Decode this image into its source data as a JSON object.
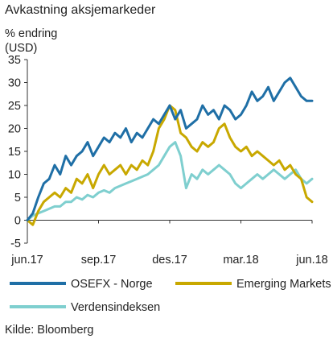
{
  "title": "Avkastning aksjemarkeder",
  "ylabel_line1": "% endring",
  "ylabel_line2": "(USD)",
  "source": "Kilde: Bloomberg",
  "chart_data": {
    "type": "line",
    "ylim": [
      -5,
      35
    ],
    "y_ticks": [
      -5,
      0,
      5,
      10,
      15,
      20,
      25,
      30,
      35
    ],
    "x_ticks": [
      {
        "label": "jun.17",
        "x": 0
      },
      {
        "label": "sep.17",
        "x": 13
      },
      {
        "label": "des.17",
        "x": 26
      },
      {
        "label": "mar.18",
        "x": 39
      },
      {
        "label": "jun.18",
        "x": 52
      }
    ],
    "xlim": [
      0,
      52
    ],
    "grid": false,
    "legend": "bottom",
    "series": [
      {
        "name": "OSEFX - Norge",
        "color": "#1f6fa6",
        "x": [
          0,
          1,
          2,
          3,
          4,
          5,
          6,
          7,
          8,
          9,
          10,
          11,
          12,
          13,
          14,
          15,
          16,
          17,
          18,
          19,
          20,
          21,
          22,
          23,
          24,
          25,
          26,
          27,
          28,
          29,
          30,
          31,
          32,
          33,
          34,
          35,
          36,
          37,
          38,
          39,
          40,
          41,
          42,
          43,
          44,
          45,
          46,
          47,
          48,
          49,
          50,
          51,
          52
        ],
        "values": [
          0,
          1.5,
          5,
          8,
          9,
          12,
          10,
          14,
          12,
          14,
          15,
          17,
          14,
          16,
          18,
          17,
          19,
          18,
          20,
          17,
          19,
          18,
          20,
          22,
          21,
          23,
          25,
          22,
          24,
          20,
          21,
          22,
          25,
          23,
          24,
          22,
          25,
          24,
          22,
          23,
          25,
          28,
          26,
          27,
          29,
          26,
          28,
          30,
          31,
          29,
          27,
          26,
          26
        ]
      },
      {
        "name": "Emerging Markets",
        "color": "#c8a800",
        "x": [
          0,
          1,
          2,
          3,
          4,
          5,
          6,
          7,
          8,
          9,
          10,
          11,
          12,
          13,
          14,
          15,
          16,
          17,
          18,
          19,
          20,
          21,
          22,
          23,
          24,
          25,
          26,
          27,
          28,
          29,
          30,
          31,
          32,
          33,
          34,
          35,
          36,
          37,
          38,
          39,
          40,
          41,
          42,
          43,
          44,
          45,
          46,
          47,
          48,
          49,
          50,
          51,
          52
        ],
        "values": [
          0,
          -1,
          2,
          4,
          5,
          6,
          5,
          7,
          6,
          9,
          8,
          10,
          7,
          10,
          12,
          10,
          11,
          12,
          10,
          12,
          11,
          13,
          12,
          15,
          20,
          22,
          25,
          24,
          19,
          18,
          16,
          15,
          17,
          16,
          17,
          20,
          21,
          18,
          16,
          15,
          16,
          14,
          15,
          14,
          13,
          12,
          13,
          11,
          12,
          10,
          9,
          5,
          4
        ]
      },
      {
        "name": "Verdensindeksen",
        "color": "#7fcfcf",
        "x": [
          0,
          1,
          2,
          3,
          4,
          5,
          6,
          7,
          8,
          9,
          10,
          11,
          12,
          13,
          14,
          15,
          16,
          17,
          18,
          19,
          20,
          21,
          22,
          23,
          24,
          25,
          26,
          27,
          28,
          29,
          30,
          31,
          32,
          33,
          34,
          35,
          36,
          37,
          38,
          39,
          40,
          41,
          42,
          43,
          44,
          45,
          46,
          47,
          48,
          49,
          50,
          51,
          52
        ],
        "values": [
          0,
          1,
          1.5,
          2,
          2.5,
          3,
          3,
          4,
          4,
          5,
          4.5,
          5.5,
          5,
          6,
          6.5,
          6,
          7,
          7.5,
          8,
          8.5,
          9,
          9.5,
          10,
          11,
          12,
          14,
          16,
          17,
          14,
          7,
          10,
          9,
          11,
          10,
          11,
          12,
          11,
          10,
          8,
          7,
          8,
          9,
          10,
          9,
          10,
          11,
          10,
          9,
          10,
          11,
          9,
          8,
          9
        ]
      }
    ]
  }
}
